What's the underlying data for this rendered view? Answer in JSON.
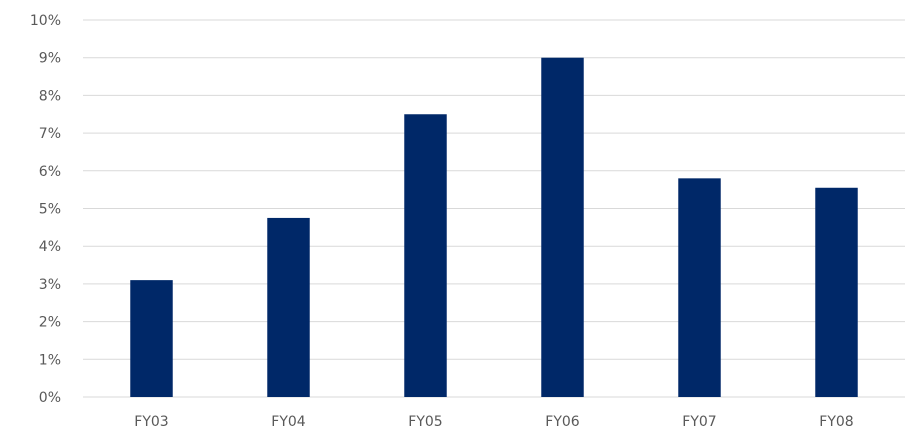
{
  "chart_data": {
    "type": "bar",
    "categories": [
      "FY03",
      "FY04",
      "FY05",
      "FY06",
      "FY07",
      "FY08"
    ],
    "values": [
      3.1,
      4.75,
      7.5,
      9.0,
      5.8,
      5.55
    ],
    "ylim": [
      0,
      10
    ],
    "y_ticks": [
      0,
      1,
      2,
      3,
      4,
      5,
      6,
      7,
      8,
      9,
      10
    ],
    "y_tick_suffix": "%",
    "grid": true,
    "bar_color": "#002868",
    "grid_color": "#d9d9d9",
    "label_color": "#595959"
  }
}
